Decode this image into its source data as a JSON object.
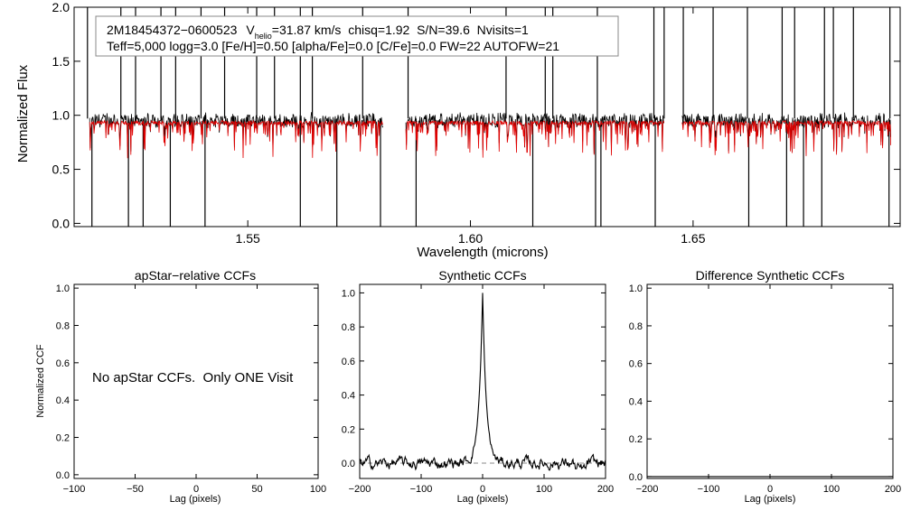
{
  "colors": {
    "observed": "#000000",
    "model": "#e00000",
    "axis": "#000000",
    "zero_line": "#888888"
  },
  "header": {
    "star_id": "2M18454372−0600523",
    "vhelio_label": "V",
    "vhelio_sub": "helio",
    "vhelio_value": "=31.87 km/s  chisq=1.92  S/N=39.6  Nvisits=1",
    "params_line": "Teff=5,000 logg=3.0 [Fe/H]=0.50 [alpha/Fe]=0.0 [C/Fe]=0.0 FW=22 AUTOFW=21"
  },
  "chart_data": [
    {
      "id": "spectrum",
      "type": "line",
      "title": "",
      "xlabel": "Wavelength (microns)",
      "ylabel": "Normalized Flux",
      "xlim": [
        1.511,
        1.6965
      ],
      "ylim": [
        -0.03,
        2.0
      ],
      "xticks": [
        1.55,
        1.6,
        1.65
      ],
      "xtick_labels": [
        "1.55",
        "1.60",
        "1.65"
      ],
      "yticks": [
        0.0,
        0.5,
        1.0,
        1.5,
        2.0
      ],
      "ytick_labels": [
        "0.0",
        "0.5",
        "1.0",
        "1.5",
        "2.0"
      ],
      "chip_ranges": [
        [
          1.5145,
          1.5805
        ],
        [
          1.5855,
          1.6435
        ],
        [
          1.6475,
          1.6945
        ]
      ],
      "series": [
        {
          "name": "observed",
          "continuum": 0.97
        },
        {
          "name": "model",
          "continuum": 0.95
        }
      ],
      "spikes": [
        1.514,
        1.5215,
        1.5248,
        1.5305,
        1.5338,
        1.5395,
        1.5448,
        1.552,
        1.556,
        1.5618,
        1.5645,
        1.5758,
        1.586,
        1.608,
        1.6168,
        1.6185,
        1.6285,
        1.6412,
        1.6435,
        1.6478,
        1.6545,
        1.6622,
        1.67,
        1.6728,
        1.6795,
        1.6815,
        1.686,
        1.6942
      ],
      "drops": [
        1.515,
        1.5232,
        1.5265,
        1.5326,
        1.5404,
        1.5618,
        1.57,
        1.5798,
        1.5878,
        1.614,
        1.6281,
        1.6293,
        1.6415,
        1.6625,
        1.671,
        1.6748,
        1.6789,
        1.694
      ]
    },
    {
      "id": "apstar_ccf",
      "type": "line",
      "title": "apStar−relative CCFs",
      "xlabel": "Lag (pixels)",
      "ylabel": "Normalized CCF",
      "xlim": [
        -100,
        100
      ],
      "ylim": [
        -0.02,
        1.02
      ],
      "xticks": [
        -100,
        -50,
        0,
        50,
        100
      ],
      "xtick_labels": [
        "−100",
        "−50",
        "0",
        "50",
        "100"
      ],
      "yticks": [
        0.0,
        0.2,
        0.4,
        0.6,
        0.8,
        1.0
      ],
      "ytick_labels": [
        "0.0",
        "0.2",
        "0.4",
        "0.6",
        "0.8",
        "1.0"
      ],
      "annotation": "No apStar CCFs.  Only ONE Visit",
      "series": []
    },
    {
      "id": "synthetic_ccf",
      "type": "line",
      "title": "Synthetic CCFs",
      "xlabel": "Lag (pixels)",
      "ylabel": "",
      "xlim": [
        -200,
        200
      ],
      "ylim": [
        -0.09,
        1.05
      ],
      "xticks": [
        -200,
        -100,
        0,
        100,
        200
      ],
      "xtick_labels": [
        "−200",
        "−100",
        "0",
        "100",
        "200"
      ],
      "yticks": [
        0.0,
        0.2,
        0.4,
        0.6,
        0.8,
        1.0
      ],
      "ytick_labels": [
        "0.0",
        "0.2",
        "0.4",
        "0.6",
        "0.8",
        "1.0"
      ],
      "peak": {
        "lag": 0,
        "value": 1.0,
        "width": 6,
        "wing": 0.13
      },
      "noise_amp": 0.025,
      "zero_line": true,
      "series": [
        {
          "name": "ccf"
        }
      ]
    },
    {
      "id": "difference_ccf",
      "type": "line",
      "title": "Difference Synthetic CCFs",
      "xlabel": "Lag (pixels)",
      "ylabel": "",
      "xlim": [
        -200,
        200
      ],
      "ylim": [
        -0.01,
        1.02
      ],
      "xticks": [
        -200,
        -100,
        0,
        100,
        200
      ],
      "xtick_labels": [
        "−200",
        "−100",
        "0",
        "100",
        "200"
      ],
      "yticks": [
        0.0,
        0.2,
        0.4,
        0.6,
        0.8,
        1.0
      ],
      "ytick_labels": [
        "0.0",
        "0.2",
        "0.4",
        "0.6",
        "0.8",
        "1.0"
      ],
      "series": [
        {
          "name": "difference",
          "values_constant": 0.0
        }
      ]
    }
  ]
}
